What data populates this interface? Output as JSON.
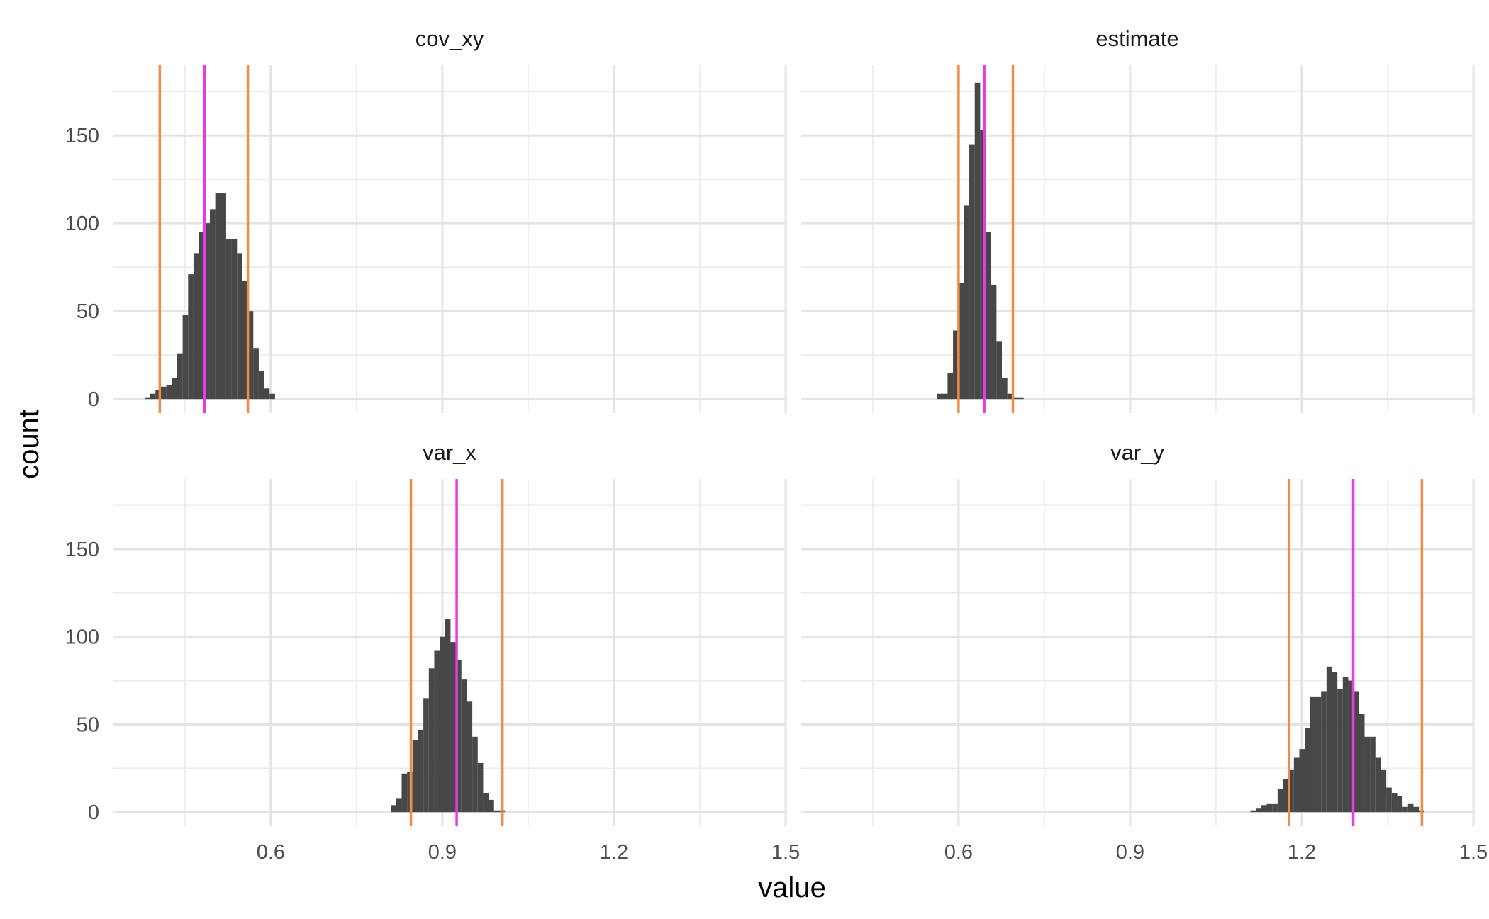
{
  "chart_data": {
    "type": "bar",
    "subtype": "faceted-histogram",
    "xlabel": "value",
    "ylabel": "count",
    "xlim": [
      0.325,
      1.5
    ],
    "ylim": [
      -8,
      190
    ],
    "x_ticks": [
      0.6,
      0.9,
      1.2,
      1.5
    ],
    "x_tick_labels": [
      "0.6",
      "0.9",
      "1.2",
      "1.5"
    ],
    "y_ticks": [
      0,
      50,
      100,
      150
    ],
    "y_tick_labels": [
      "0",
      "50",
      "100",
      "150"
    ],
    "bin_width": 0.0095,
    "bar_color": "#474747",
    "mean_line_color": "#E83BE8",
    "interval_line_color": "#F48A46",
    "grid": true,
    "facets": [
      {
        "name": "cov_xy",
        "bins_start": 0.3795,
        "counts": [
          1,
          3,
          5,
          7,
          8,
          12,
          26,
          48,
          71,
          83,
          95,
          100,
          108,
          117,
          117,
          91,
          91,
          83,
          67,
          50,
          29,
          16,
          6,
          3
        ],
        "mean": 0.484,
        "interval": [
          0.406,
          0.56
        ]
      },
      {
        "name": "estimate",
        "bins_start": 0.5618,
        "counts": [
          3,
          3,
          15,
          39,
          66,
          110,
          145,
          180,
          153,
          95,
          65,
          33,
          12,
          3,
          1,
          1
        ],
        "mean": 0.645,
        "interval": [
          0.6,
          0.695
        ]
      },
      {
        "name": "var_x",
        "bins_start": 0.8098,
        "counts": [
          4,
          8,
          22,
          23,
          41,
          47,
          65,
          82,
          92,
          100,
          110,
          97,
          87,
          76,
          63,
          43,
          28,
          11,
          7,
          1,
          1
        ],
        "mean": 0.925,
        "interval": [
          0.845,
          1.005
        ]
      },
      {
        "name": "var_y",
        "bins_start": 1.1102,
        "counts": [
          1,
          2,
          4,
          5,
          5,
          13,
          19,
          24,
          31,
          36,
          48,
          66,
          66,
          69,
          83,
          80,
          70,
          77,
          75,
          69,
          56,
          43,
          43,
          31,
          24,
          14,
          11,
          9,
          3,
          5,
          3,
          1
        ],
        "mean": 1.29,
        "interval": [
          1.178,
          1.41
        ]
      }
    ]
  }
}
